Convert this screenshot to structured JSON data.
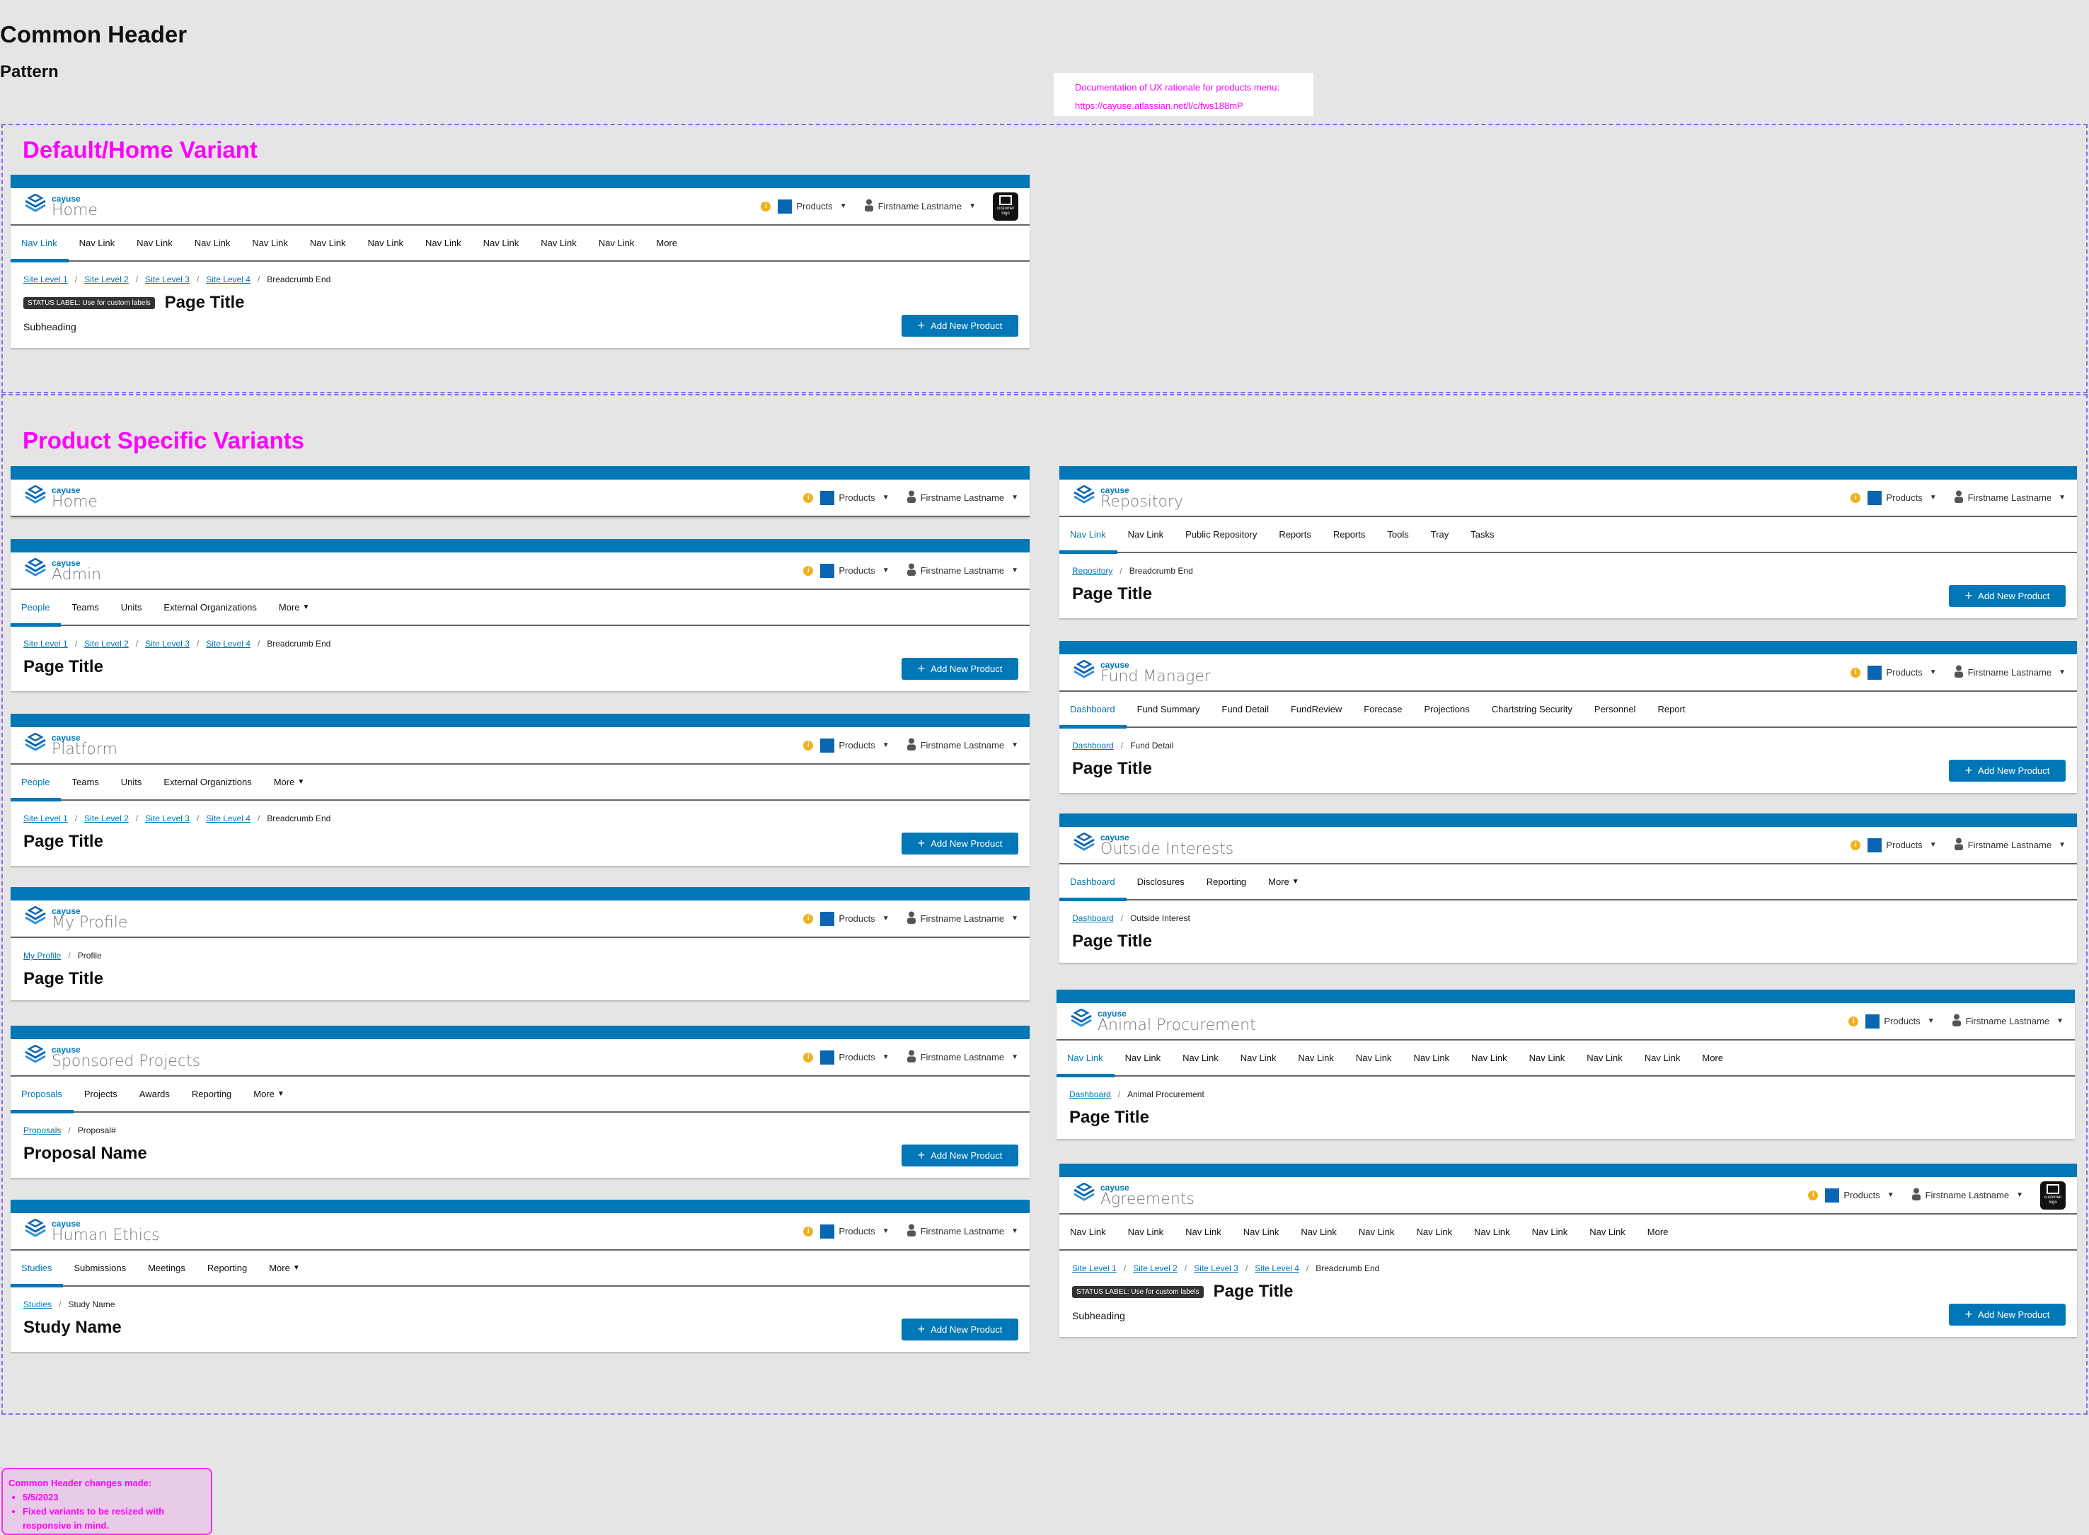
{
  "page": {
    "title": "Common Header",
    "subtitle": "Pattern"
  },
  "doc_note": {
    "text": "Documentation of UX rationale for products menu:",
    "link": "https://cayuse.atlassian.net/l/c/fws188mP"
  },
  "sections": {
    "default": "Default/Home Variant",
    "product": "Product Specific Variants"
  },
  "change_note": {
    "title": "Common Header changes made:",
    "items": [
      "5/5/2023",
      "Fixed variants to be resized with responsive in mind."
    ]
  },
  "header": {
    "brand": "cayuse",
    "products_label": "Products",
    "user_name": "Firstname Lastname",
    "customer_logo": "customer logo"
  },
  "colors": {
    "brand_blue": "#0077b6",
    "annotation": "#ff00ff",
    "info": "#f2b01e"
  },
  "cards": [
    {
      "product": "Home",
      "customer_logo": true,
      "nav": [
        "Nav Link",
        "Nav Link",
        "Nav Link",
        "Nav Link",
        "Nav Link",
        "Nav Link",
        "Nav Link",
        "Nav Link",
        "Nav Link",
        "Nav Link",
        "Nav Link",
        "More"
      ],
      "active": 0,
      "more_caret": false,
      "breadcrumb": [
        "Site Level 1",
        "Site Level 2",
        "Site Level 3",
        "Site Level 4",
        "Breadcrumb End"
      ],
      "status_label": "STATUS LABEL: Use for custom labels",
      "title": "Page Title",
      "subheading": "Subheading",
      "button": "Add New Product"
    },
    {
      "product": "Home"
    },
    {
      "product": "Admin",
      "nav": [
        "People",
        "Teams",
        "Units",
        "External Organizations",
        "More"
      ],
      "active": 0,
      "more_caret": true,
      "breadcrumb": [
        "Site Level 1",
        "Site Level 2",
        "Site Level 3",
        "Site Level 4",
        "Breadcrumb End"
      ],
      "title": "Page Title",
      "button": "Add New Product"
    },
    {
      "product": "Platform",
      "nav": [
        "People",
        "Teams",
        "Units",
        "External Organiztions",
        "More"
      ],
      "active": 0,
      "more_caret": true,
      "breadcrumb": [
        "Site Level 1",
        "Site Level 2",
        "Site Level 3",
        "Site Level 4",
        "Breadcrumb End"
      ],
      "title": "Page Title",
      "button": "Add New Product"
    },
    {
      "product": "My Profile",
      "breadcrumb": [
        "My Profile",
        "Profile"
      ],
      "title": "Page Title"
    },
    {
      "product": "Sponsored Projects",
      "nav": [
        "Proposals",
        "Projects",
        "Awards",
        "Reporting",
        "More"
      ],
      "active": 0,
      "more_caret": true,
      "breadcrumb": [
        "Proposals",
        "Proposal#"
      ],
      "title": "Proposal Name",
      "button": "Add New Product"
    },
    {
      "product": "Human Ethics",
      "nav": [
        "Studies",
        "Submissions",
        "Meetings",
        "Reporting",
        "More"
      ],
      "active": 0,
      "more_caret": true,
      "breadcrumb": [
        "Studies",
        "Study Name"
      ],
      "title": "Study Name",
      "button": "Add New Product"
    },
    {
      "product": "Repository",
      "nav": [
        "Nav Link",
        "Nav Link",
        "Public Repository",
        "Reports",
        "Reports",
        "Tools",
        "Tray",
        "Tasks"
      ],
      "active": 0,
      "more_caret": false,
      "breadcrumb": [
        "Repository",
        "Breadcrumb End"
      ],
      "title": "Page Title",
      "button": "Add New Product"
    },
    {
      "product": "Fund Manager",
      "nav": [
        "Dashboard",
        "Fund Summary",
        "Fund Detail",
        "FundReview",
        "Forecase",
        "Projections",
        "Chartstring Security",
        "Personnel",
        "Report"
      ],
      "active": 0,
      "more_caret": false,
      "breadcrumb": [
        "Dashboard",
        "Fund Detail"
      ],
      "title": "Page Title",
      "button": "Add New Product"
    },
    {
      "product": "Outside Interests",
      "nav": [
        "Dashboard",
        "Disclosures",
        "Reporting",
        "More"
      ],
      "active": 0,
      "more_caret": true,
      "breadcrumb": [
        "Dashboard",
        "Outside Interest"
      ],
      "title": "Page Title"
    },
    {
      "product": "Animal Procurement",
      "nav": [
        "Nav Link",
        "Nav Link",
        "Nav Link",
        "Nav Link",
        "Nav Link",
        "Nav Link",
        "Nav Link",
        "Nav Link",
        "Nav Link",
        "Nav Link",
        "Nav Link",
        "More"
      ],
      "active": 0,
      "more_caret": false,
      "breadcrumb": [
        "Dashboard",
        "Animal Procurement"
      ],
      "title": "Page Title"
    },
    {
      "product": "Agreements",
      "customer_logo": true,
      "nav": [
        "Nav Link",
        "Nav Link",
        "Nav Link",
        "Nav Link",
        "Nav Link",
        "Nav Link",
        "Nav Link",
        "Nav Link",
        "Nav Link",
        "Nav Link",
        "More"
      ],
      "active": -1,
      "more_caret": false,
      "breadcrumb": [
        "Site Level 1",
        "Site Level 2",
        "Site Level 3",
        "Site Level 4",
        "Breadcrumb End"
      ],
      "status_label": "STATUS LABEL: Use for custom labels",
      "title": "Page Title",
      "subheading": "Subheading",
      "button": "Add New Product"
    }
  ]
}
